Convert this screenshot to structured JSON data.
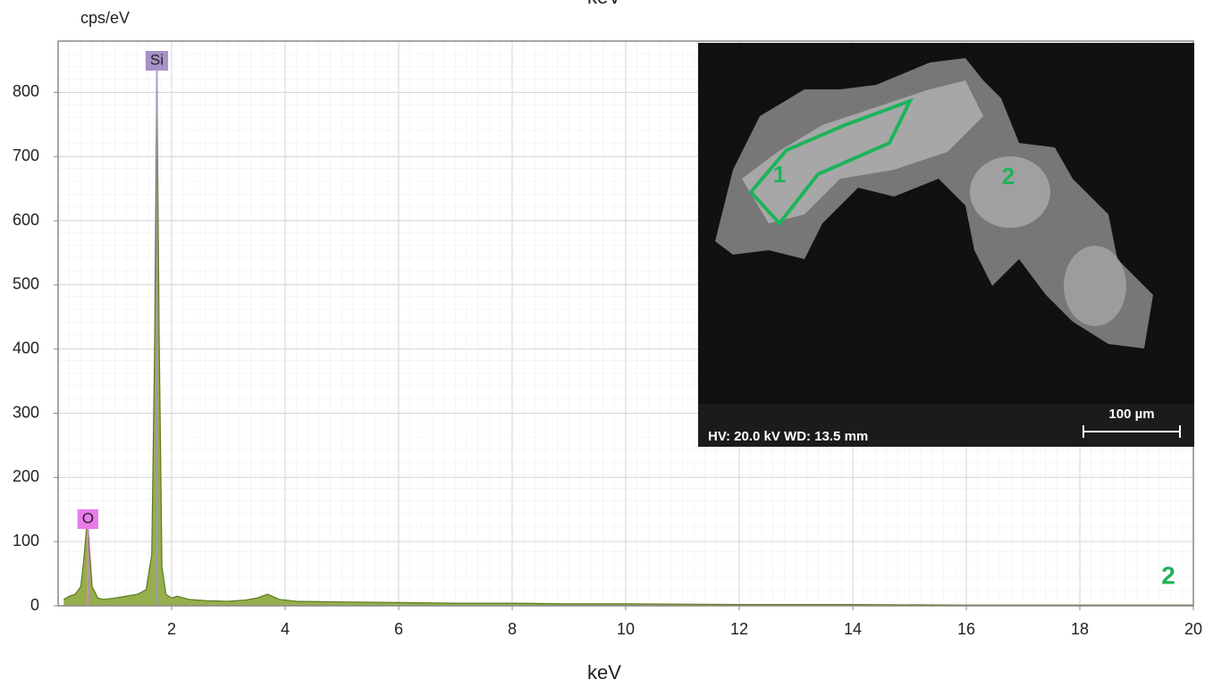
{
  "chart_data": {
    "type": "area",
    "y_label": "cps/eV",
    "x_label": "keV",
    "panel_label": "2",
    "x": [
      0.1,
      0.2,
      0.3,
      0.4,
      0.45,
      0.5,
      0.525,
      0.55,
      0.6,
      0.7,
      0.8,
      1.0,
      1.2,
      1.4,
      1.55,
      1.65,
      1.7,
      1.74,
      1.78,
      1.83,
      1.9,
      2.0,
      2.1,
      2.3,
      2.6,
      3.0,
      3.3,
      3.5,
      3.69,
      3.9,
      4.2,
      5,
      6,
      7,
      8,
      9,
      10,
      12,
      14,
      16,
      18,
      20
    ],
    "values": [
      10,
      15,
      18,
      30,
      70,
      120,
      128,
      90,
      30,
      12,
      10,
      12,
      15,
      18,
      25,
      80,
      400,
      840,
      420,
      60,
      18,
      12,
      15,
      10,
      8,
      7,
      9,
      12,
      18,
      10,
      7,
      6,
      5,
      4,
      4,
      3,
      3,
      2,
      2,
      1,
      1,
      1
    ],
    "color": "#8aa63a",
    "xlim": [
      0,
      20
    ],
    "ylim": [
      0,
      880
    ],
    "xticks": [
      2,
      4,
      6,
      8,
      10,
      12,
      14,
      16,
      18,
      20
    ],
    "yticks": [
      0,
      100,
      200,
      300,
      400,
      500,
      600,
      700,
      800
    ],
    "grid": true,
    "peak_labels": [
      {
        "label": "O",
        "x": 0.525,
        "color": "#e97be9"
      },
      {
        "label": "Si",
        "x": 1.74,
        "color": "#a692c6"
      }
    ],
    "inset": {
      "info": "HV: 20.0 kV  WD: 13.5 mm",
      "scale_bar": "100 µm",
      "regions": [
        "1",
        "2"
      ]
    }
  }
}
